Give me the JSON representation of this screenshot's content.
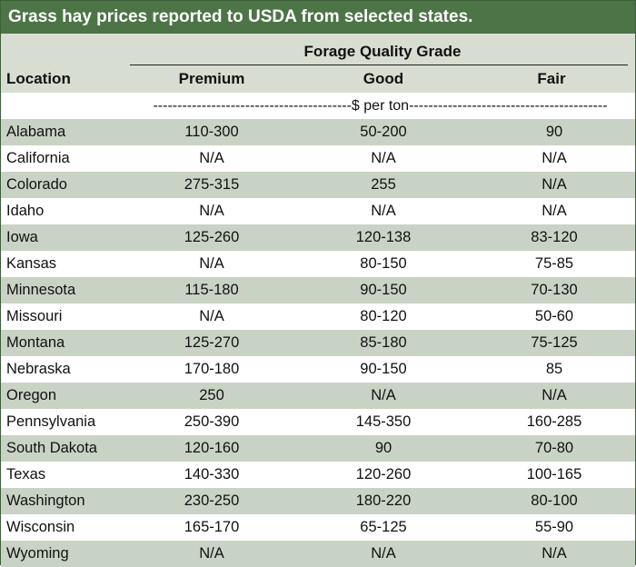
{
  "title": "Grass hay prices reported to USDA from selected states.",
  "header": {
    "group_label": "Forage Quality Grade",
    "location": "Location",
    "columns": [
      "Premium",
      "Good",
      "Fair"
    ]
  },
  "unit_line": "-----------------------------------------$ per ton-----------------------------------------",
  "rows": [
    {
      "location": "Alabama",
      "premium": "110-300",
      "good": "50-200",
      "fair": "90"
    },
    {
      "location": "California",
      "premium": "N/A",
      "good": "N/A",
      "fair": "N/A"
    },
    {
      "location": "Colorado",
      "premium": "275-315",
      "good": "255",
      "fair": "N/A"
    },
    {
      "location": "Idaho",
      "premium": "N/A",
      "good": "N/A",
      "fair": "N/A"
    },
    {
      "location": "Iowa",
      "premium": "125-260",
      "good": "120-138",
      "fair": "83-120"
    },
    {
      "location": "Kansas",
      "premium": "N/A",
      "good": "80-150",
      "fair": "75-85"
    },
    {
      "location": "Minnesota",
      "premium": "115-180",
      "good": "90-150",
      "fair": "70-130"
    },
    {
      "location": "Missouri",
      "premium": "N/A",
      "good": "80-120",
      "fair": "50-60"
    },
    {
      "location": "Montana",
      "premium": "125-270",
      "good": "85-180",
      "fair": "75-125"
    },
    {
      "location": "Nebraska",
      "premium": "170-180",
      "good": "90-150",
      "fair": "85"
    },
    {
      "location": "Oregon",
      "premium": "250",
      "good": "N/A",
      "fair": "N/A"
    },
    {
      "location": "Pennsylvania",
      "premium": "250-390",
      "good": "145-350",
      "fair": "160-285"
    },
    {
      "location": "South Dakota",
      "premium": "120-160",
      "good": "90",
      "fair": "70-80"
    },
    {
      "location": "Texas",
      "premium": "140-330",
      "good": "120-260",
      "fair": "100-165"
    },
    {
      "location": "Washington",
      "premium": "230-250",
      "good": "180-220",
      "fair": "80-100"
    },
    {
      "location": "Wisconsin",
      "premium": "165-170",
      "good": "65-125",
      "fair": "55-90"
    },
    {
      "location": "Wyoming",
      "premium": "N/A",
      "good": "N/A",
      "fair": "N/A"
    }
  ],
  "colors": {
    "title_bg": "#4d7447",
    "header_bg": "#d8ddd1",
    "row_shade": "#c9d3c5"
  }
}
